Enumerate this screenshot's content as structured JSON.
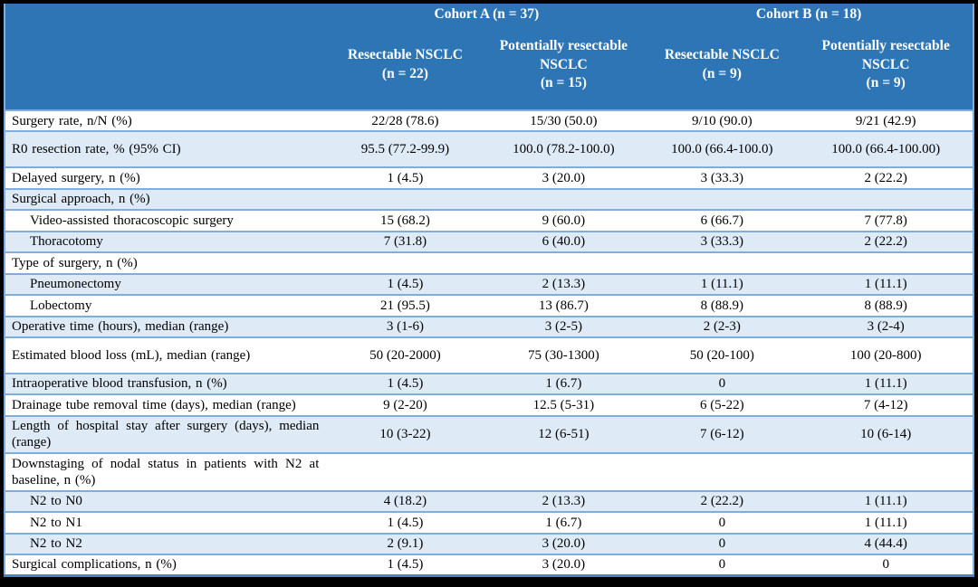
{
  "colors": {
    "header_bg": "#2E75B6",
    "header_text": "#FFFFFF",
    "row_alt_bg": "#DEEAF6",
    "grid_line": "#7FADDC",
    "table_bottom_line": "#4685C2",
    "frame": "#000000",
    "body_text": "#000000"
  },
  "table": {
    "cohorts": [
      {
        "label": "Cohort A (n = 37)"
      },
      {
        "label": "Cohort B (n = 18)"
      }
    ],
    "columns": [
      {
        "name": "Resectable NSCLC",
        "n": "(n = 22)"
      },
      {
        "name": "Potentially resectable NSCLC",
        "n": "(n = 15)"
      },
      {
        "name": "Resectable NSCLC",
        "n": "(n = 9)"
      },
      {
        "name": "Potentially resectable NSCLC",
        "n": "(n = 9)"
      }
    ],
    "rows": [
      {
        "label": "Surgery rate, n/N (%)",
        "indent": false,
        "section": false,
        "tall": false,
        "values": [
          "22/28 (78.6)",
          "15/30 (50.0)",
          "9/10 (90.0)",
          "9/21 (42.9)"
        ]
      },
      {
        "label": "R0 resection rate, % (95% CI)",
        "indent": false,
        "section": false,
        "tall": true,
        "values": [
          "95.5 (77.2-99.9)",
          "100.0 (78.2-100.0)",
          "100.0 (66.4-100.0)",
          "100.0 (66.4-100.00)"
        ]
      },
      {
        "label": "Delayed surgery, n (%)",
        "indent": false,
        "section": false,
        "tall": false,
        "values": [
          "1 (4.5)",
          "3 (20.0)",
          "3 (33.3)",
          "2 (22.2)"
        ]
      },
      {
        "label": "Surgical approach, n (%)",
        "indent": false,
        "section": true,
        "tall": false,
        "values": [
          "",
          "",
          "",
          ""
        ]
      },
      {
        "label": "Video-assisted thoracoscopic surgery",
        "indent": true,
        "section": false,
        "tall": false,
        "values": [
          "15 (68.2)",
          "9 (60.0)",
          "6 (66.7)",
          "7 (77.8)"
        ]
      },
      {
        "label": "Thoracotomy",
        "indent": true,
        "section": false,
        "tall": false,
        "values": [
          "7 (31.8)",
          "6 (40.0)",
          "3 (33.3)",
          "2 (22.2)"
        ]
      },
      {
        "label": "Type of surgery, n (%)",
        "indent": false,
        "section": true,
        "tall": false,
        "values": [
          "",
          "",
          "",
          ""
        ]
      },
      {
        "label": "Pneumonectomy",
        "indent": true,
        "section": false,
        "tall": false,
        "values": [
          "1 (4.5)",
          "2 (13.3)",
          "1 (11.1)",
          "1 (11.1)"
        ]
      },
      {
        "label": "Lobectomy",
        "indent": true,
        "section": false,
        "tall": false,
        "values": [
          "21 (95.5)",
          "13 (86.7)",
          "8 (88.9)",
          "8 (88.9)"
        ]
      },
      {
        "label": "Operative time (hours), median (range)",
        "indent": false,
        "section": false,
        "tall": false,
        "values": [
          "3 (1-6)",
          "3 (2-5)",
          "2 (2-3)",
          "3 (2-4)"
        ]
      },
      {
        "label": "Estimated blood loss (mL), median (range)",
        "indent": false,
        "section": false,
        "tall": true,
        "values": [
          "50 (20-2000)",
          "75 (30-1300)",
          "50 (20-100)",
          "100 (20-800)"
        ]
      },
      {
        "label": "Intraoperative blood transfusion, n (%)",
        "indent": false,
        "section": false,
        "tall": false,
        "values": [
          "1 (4.5)",
          "1 (6.7)",
          "0",
          "1 (11.1)"
        ]
      },
      {
        "label": "Drainage tube removal time (days), median (range)",
        "indent": false,
        "section": false,
        "tall": false,
        "values": [
          "9 (2-20)",
          "12.5 (5-31)",
          "6 (5-22)",
          "7 (4-12)"
        ]
      },
      {
        "label": "Length of hospital stay after surgery (days), median (range)",
        "indent": false,
        "section": false,
        "tall": false,
        "values": [
          "10 (3-22)",
          "12 (6-51)",
          "7 (6-12)",
          "10 (6-14)"
        ]
      },
      {
        "label": "Downstaging of nodal status in patients with N2 at baseline, n (%)",
        "indent": false,
        "section": true,
        "tall": false,
        "values": [
          "",
          "",
          "",
          ""
        ]
      },
      {
        "label": "N2 to N0",
        "indent": true,
        "section": false,
        "tall": false,
        "values": [
          "4 (18.2)",
          "2 (13.3)",
          "2 (22.2)",
          "1 (11.1)"
        ]
      },
      {
        "label": "N2 to N1",
        "indent": true,
        "section": false,
        "tall": false,
        "values": [
          "1 (4.5)",
          "1 (6.7)",
          "0",
          "1 (11.1)"
        ]
      },
      {
        "label": "N2 to N2",
        "indent": true,
        "section": false,
        "tall": false,
        "values": [
          "2 (9.1)",
          "3 (20.0)",
          "0",
          "4 (44.4)"
        ]
      },
      {
        "label": "Surgical complications, n (%)",
        "indent": false,
        "section": false,
        "tall": false,
        "values": [
          "1 (4.5)",
          "3 (20.0)",
          "0",
          "0"
        ]
      }
    ]
  }
}
